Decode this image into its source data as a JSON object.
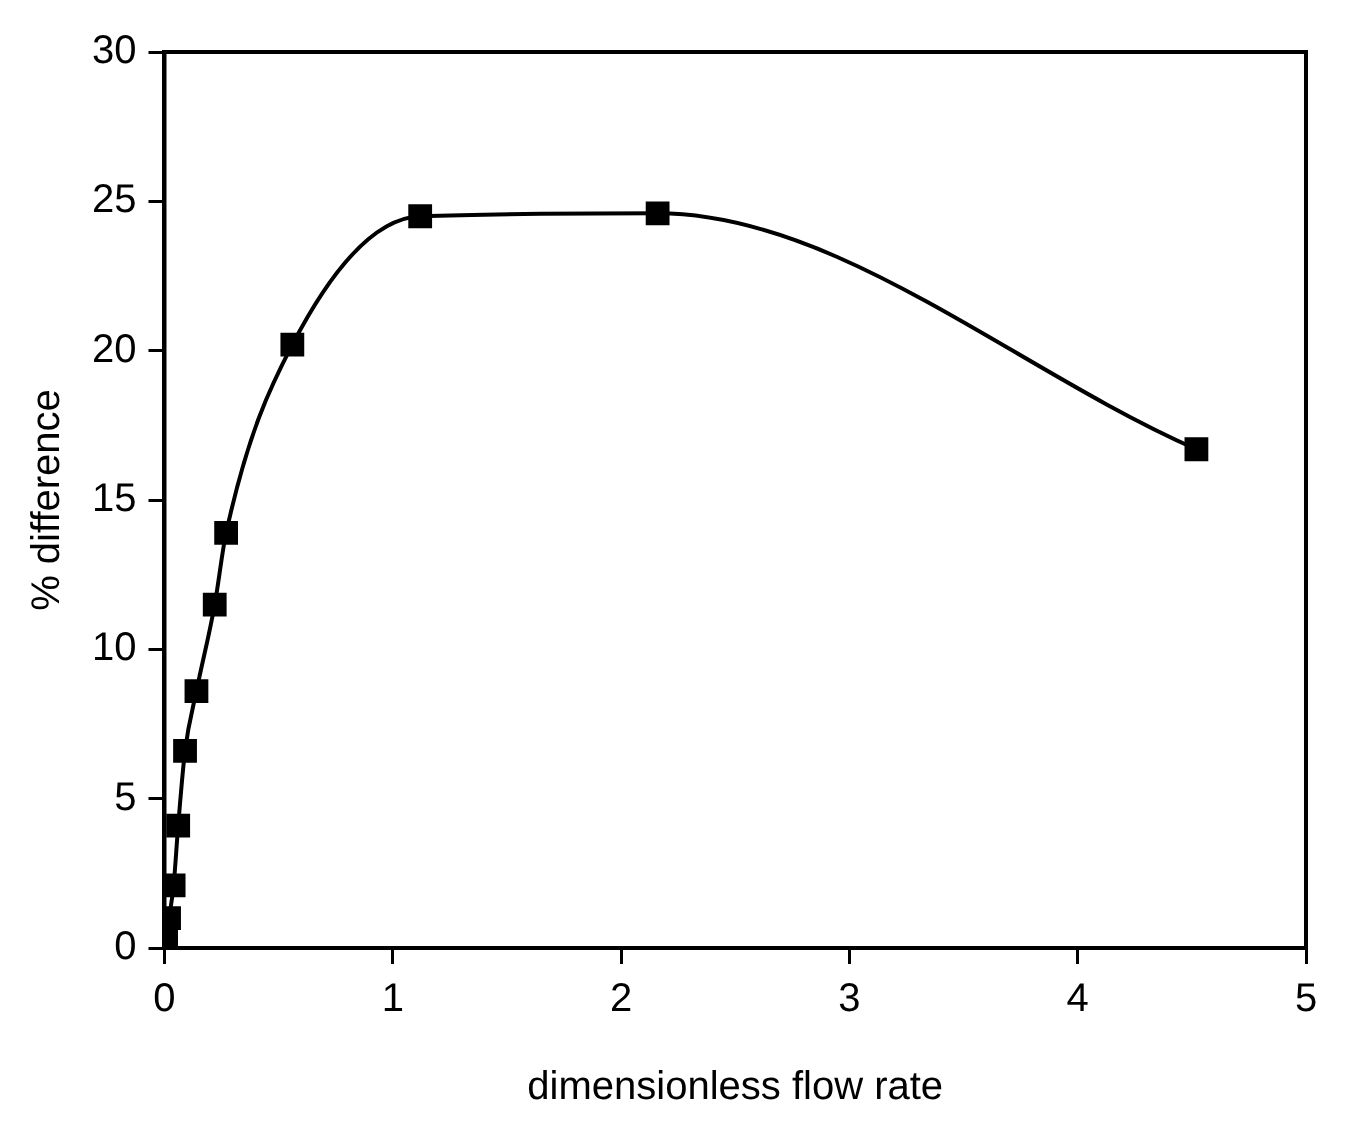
{
  "chart_data": {
    "type": "line",
    "xlabel": "dimensionless flow rate",
    "ylabel": "% difference",
    "x": [
      0.007,
      0.02,
      0.04,
      0.06,
      0.09,
      0.14,
      0.22,
      0.27,
      0.56,
      1.12,
      2.16,
      4.52
    ],
    "series": [
      {
        "color": "#000000",
        "values": [
          0.25,
          1.0,
          2.1,
          4.1,
          6.6,
          8.6,
          11.5,
          13.9,
          20.2,
          24.5,
          24.6,
          16.7
        ]
      }
    ],
    "xlim": [
      0,
      5
    ],
    "xticks": [
      0,
      1,
      2,
      3,
      4,
      5
    ],
    "ylim": [
      0,
      30
    ],
    "yticks": [
      0,
      5,
      10,
      15,
      20,
      25,
      30
    ],
    "grid": false,
    "legend": false,
    "marker": "square",
    "line_style": "solid"
  }
}
